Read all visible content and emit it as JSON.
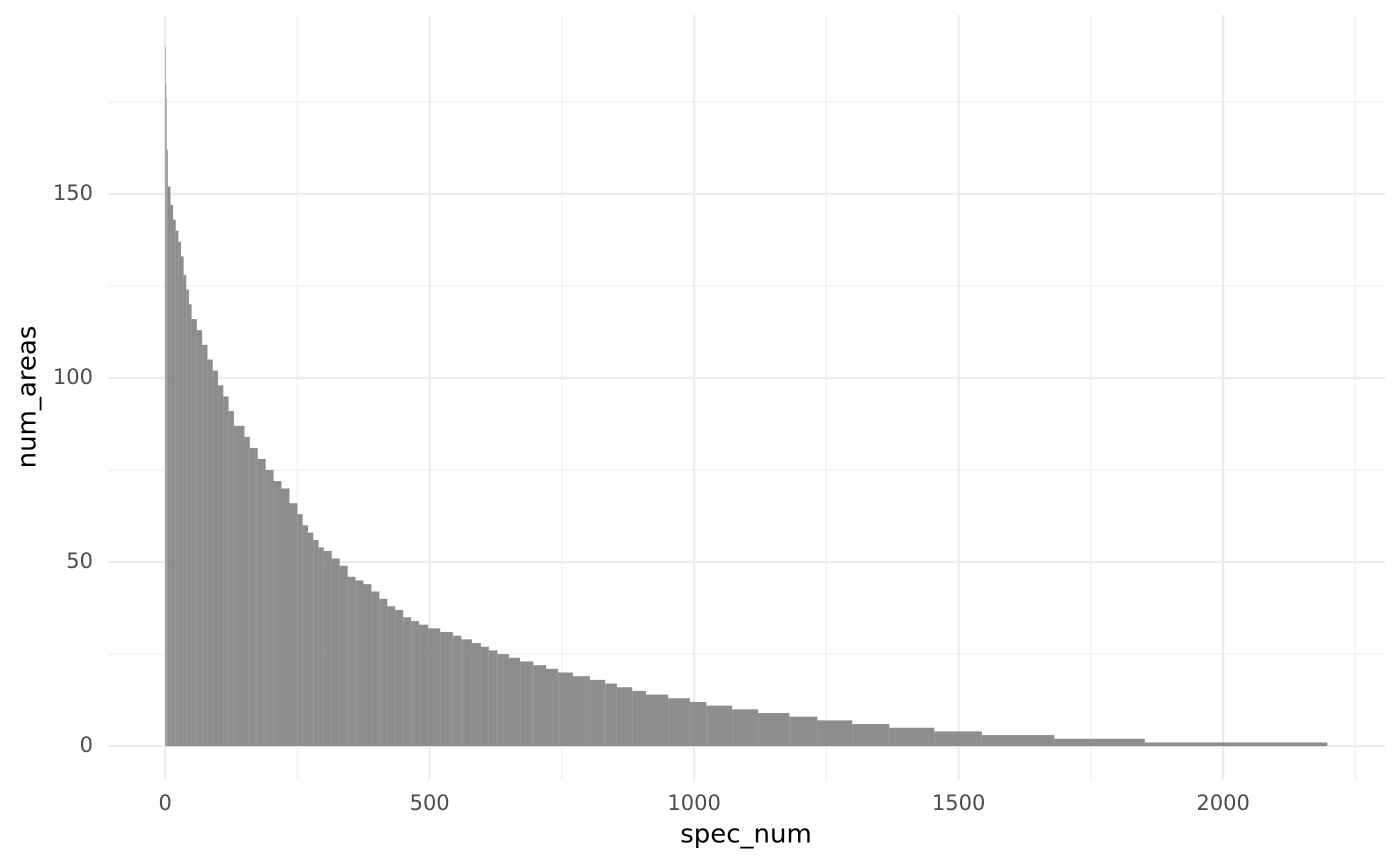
{
  "chart_data": {
    "type": "histogram",
    "x_label": "spec_num",
    "y_label": "num_areas",
    "bins": [
      0,
      1,
      2,
      3,
      5,
      10,
      15,
      20,
      25,
      30,
      35,
      40,
      45,
      50,
      60,
      70,
      80,
      90,
      100,
      110,
      120,
      130,
      150,
      160,
      175,
      190,
      205,
      220,
      235,
      250,
      260,
      270,
      280,
      290,
      300,
      315,
      330,
      345,
      360,
      375,
      390,
      405,
      420,
      435,
      450,
      465,
      480,
      497,
      520,
      544,
      560,
      580,
      597,
      612,
      628,
      650,
      671,
      696,
      720,
      743,
      771,
      803,
      832,
      854,
      883,
      909,
      951,
      992,
      1023,
      1072,
      1121,
      1180,
      1233,
      1299,
      1369,
      1454,
      1544,
      1681,
      1852,
      2197
    ],
    "values": [
      190,
      180,
      176,
      162,
      152,
      147,
      143,
      140,
      137,
      133,
      128,
      124,
      120,
      116,
      113,
      109,
      105,
      102,
      98,
      95,
      91,
      87,
      84,
      81,
      78,
      75,
      72,
      70,
      66,
      63,
      60,
      58,
      56,
      54,
      53,
      51,
      49,
      46,
      45,
      44,
      42,
      40,
      38,
      37,
      35,
      34,
      33,
      32,
      31,
      30,
      29,
      28,
      27,
      26,
      25,
      24,
      23,
      22,
      21,
      20,
      19,
      18,
      17,
      16,
      15,
      14,
      13,
      12,
      11,
      10,
      9,
      8,
      7,
      6,
      5,
      4,
      3,
      2,
      1
    ],
    "color": "#8d8d8d",
    "xlim": [
      -108,
      2306
    ],
    "xticks": [
      0,
      500,
      1000,
      1500,
      2000
    ],
    "xminor": [
      250,
      750,
      1250,
      1750,
      2250
    ],
    "ylim": [
      -9.2,
      198.6
    ],
    "yticks": [
      0,
      50,
      100,
      150
    ],
    "yminor": [
      25,
      75,
      125,
      175
    ],
    "grid": true
  }
}
